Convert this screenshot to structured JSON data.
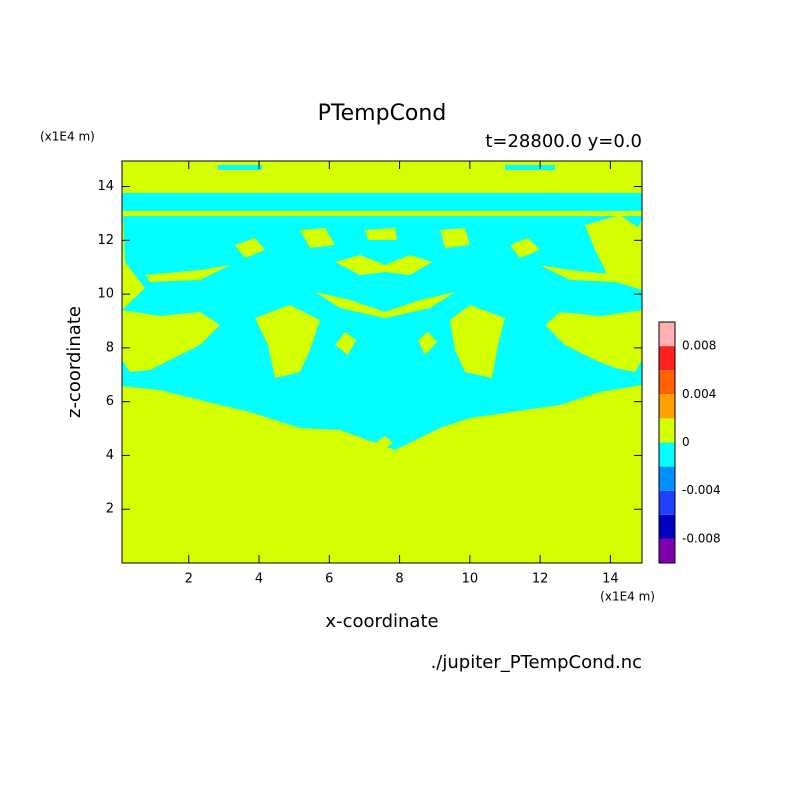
{
  "chart_data": {
    "type": "contour",
    "title": "PTempCond",
    "subtitle": "t=28800.0 y=0.0",
    "x_label": "x-coordinate",
    "y_label": "z-coordinate",
    "x_unit": "(x1E4 m)",
    "y_unit": "(x1E4 m)",
    "source": "./jupiter_PTempCond.nc",
    "xlim": [
      0.1,
      14.9
    ],
    "ylim": [
      0,
      14.95
    ],
    "xticks": [
      2,
      4,
      6,
      8,
      10,
      12,
      14
    ],
    "yticks": [
      2,
      4,
      6,
      8,
      10,
      12,
      14
    ],
    "colorbar": {
      "levels": [
        -0.01,
        -0.008,
        -0.006,
        -0.004,
        -0.002,
        0,
        0.002,
        0.004,
        0.006,
        0.008,
        0.01
      ],
      "colors": [
        "#8000b0",
        "#0000c0",
        "#2040ff",
        "#0090ff",
        "#00ffff",
        "#d4ff00",
        "#ffa000",
        "#ff6000",
        "#ff2020",
        "#ffb0b0"
      ],
      "ticks": [
        -0.008,
        -0.004,
        0,
        0.004,
        0.008
      ]
    }
  }
}
